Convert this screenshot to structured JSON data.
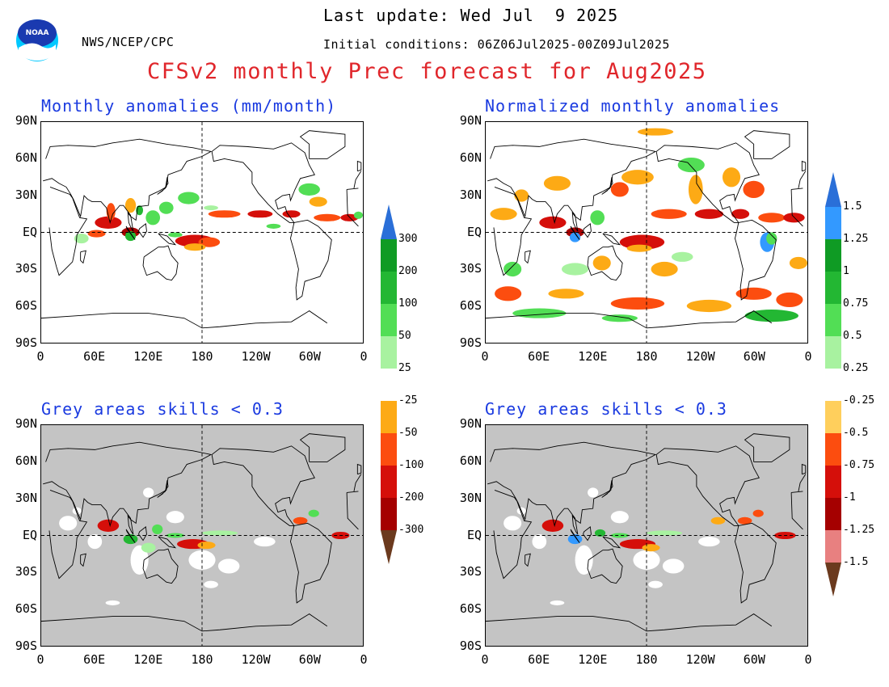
{
  "header": {
    "agency": "NWS/NCEP/CPC",
    "last_update": "Last update: Wed Jul  9 2025",
    "initial_conditions": "Initial conditions: 06Z06Jul2025-00Z09Jul2025",
    "title": "CFSv2 monthly Prec forecast for Aug2025",
    "logo_text": "NOAA",
    "logo_icon": "noaa-logo-icon"
  },
  "panels": {
    "top_left_title": "Monthly anomalies (mm/month)",
    "top_right_title": "Normalized monthly anomalies",
    "bottom_left_title": "Grey areas skills < 0.3",
    "bottom_right_title": "Grey areas skills < 0.3"
  },
  "axes": {
    "lat_labels": [
      "90N",
      "60N",
      "30N",
      "EQ",
      "30S",
      "60S",
      "90S"
    ],
    "lon_labels": [
      "0",
      "60E",
      "120E",
      "180",
      "120W",
      "60W",
      "0"
    ]
  },
  "colorbar_left": {
    "labels": [
      "300",
      "200",
      "100",
      "50",
      "25",
      "-25",
      "-50",
      "-100",
      "-200",
      "-300"
    ]
  },
  "colorbar_right": {
    "labels": [
      "1.5",
      "1.25",
      "1",
      "0.75",
      "0.5",
      "0.25",
      "-0.25",
      "-0.5",
      "-0.75",
      "-1",
      "-1.25",
      "-1.5"
    ]
  },
  "colors": {
    "title_red": "#e0262b",
    "panel_title_blue": "#1a3ae0",
    "skill_grey": "#c4c4c4",
    "wet_3": "#0f9b24",
    "wet_2": "#23b733",
    "wet_1": "#52de55",
    "wet_0": "#a8f2a0",
    "dry_0": "#fdaa15",
    "dry_1": "#fc4d0f",
    "dry_2": "#d50f0a",
    "dry_3": "#a50000",
    "brown": "#6b3a1e",
    "blue_top": "#2a6fd8",
    "blue_light": "#3399ff",
    "pink": "#e88080",
    "dry_pale": "#ffcf5c"
  }
}
